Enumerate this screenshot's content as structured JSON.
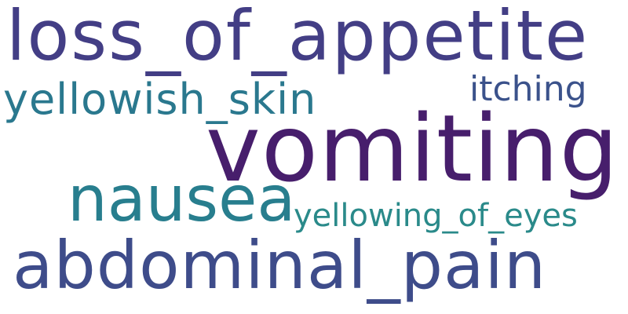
{
  "words": [
    {
      "text": "loss_of_appetite",
      "color": "#433e85"
    },
    {
      "text": "vomiting",
      "color": "#471e6c"
    },
    {
      "text": "nausea",
      "color": "#287e8e"
    },
    {
      "text": "yellowish_skin",
      "color": "#2a788e"
    },
    {
      "text": "itching",
      "color": "#3b528b"
    },
    {
      "text": "abdominal_pain",
      "color": "#3e4c8a"
    },
    {
      "text": "yellowing_of_eyes",
      "color": "#2a8a8a"
    }
  ]
}
